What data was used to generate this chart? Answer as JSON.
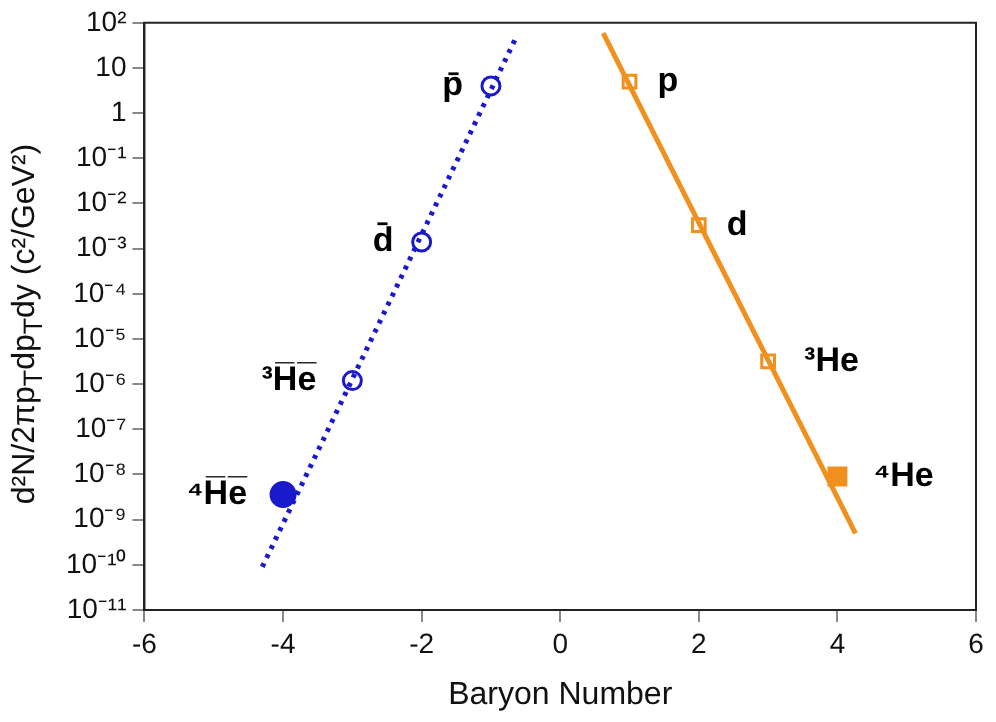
{
  "chart_data": {
    "type": "scatter",
    "xlabel": "Baryon Number",
    "ylabel": "d²N/2πp$_{T}$dp$_{T}$dy (c²/GeV²)",
    "log": "y",
    "grid": false,
    "legend": false,
    "xlim": [
      -6,
      6
    ],
    "xticks": [
      -6,
      -4,
      -2,
      0,
      2,
      4,
      6
    ],
    "ylim": [
      1e-11,
      100
    ],
    "yticks": [
      {
        "value": 1e-11,
        "label": "10⁻¹¹"
      },
      {
        "value": 1e-10,
        "label": "10⁻¹⁰"
      },
      {
        "value": 1e-09,
        "label": "10⁻⁹"
      },
      {
        "value": 1e-08,
        "label": "10⁻⁸"
      },
      {
        "value": 1e-07,
        "label": "10⁻⁷"
      },
      {
        "value": 1e-06,
        "label": "10⁻⁶"
      },
      {
        "value": 1e-05,
        "label": "10⁻⁵"
      },
      {
        "value": 0.0001,
        "label": "10⁻⁴"
      },
      {
        "value": 0.001,
        "label": "10⁻³"
      },
      {
        "value": 0.01,
        "label": "10⁻²"
      },
      {
        "value": 0.1,
        "label": "10⁻¹"
      },
      1,
      10,
      {
        "value": 100,
        "label": "10²"
      }
    ],
    "series": [
      {
        "type": "line",
        "color": "#1a1acc",
        "x": [
          -4.3,
          -0.65
        ],
        "values": [
          9e-11,
          43
        ],
        "marker": "none",
        "line_style": "dotted"
      },
      {
        "type": "line",
        "color": "#f0901e",
        "x": [
          0.62,
          4.26
        ],
        "values": [
          59,
          5e-10
        ],
        "marker": "none",
        "line_style": "solid"
      },
      {
        "type": "scatter",
        "color": "#1a1acc",
        "marker": "circle",
        "x": [
          -3,
          -2,
          -1
        ],
        "values": [
          1.2e-06,
          0.0014,
          4
        ]
      },
      {
        "type": "scatter",
        "color": "#1a1acc",
        "colors": [
          "#1a1acc"
        ],
        "marker": "circle",
        "x": [
          -4
        ],
        "values": [
          3.6e-09
        ]
      },
      {
        "type": "scatter",
        "color": "#f0901e",
        "marker": "square",
        "x": [
          1,
          2,
          3
        ],
        "values": [
          5,
          0.0033,
          3.2e-06
        ]
      },
      {
        "type": "scatter",
        "color": "#f0901e",
        "colors": [
          "#f0901e"
        ],
        "marker": "square",
        "x": [
          4
        ],
        "values": [
          9e-09
        ]
      }
    ],
    "annotations": [
      {
        "text": "p̄",
        "x": -1,
        "y": 4
      },
      {
        "text": "d̄",
        "x": -2,
        "y": 0.0014
      },
      {
        "text": "³H̅e̅",
        "x": -3,
        "y": 1.2e-06
      },
      {
        "text": "⁴H̅e̅",
        "x": -4,
        "y": 3.6e-09
      },
      {
        "text": "p",
        "x": 1,
        "y": 5
      },
      {
        "text": "d",
        "x": 2,
        "y": 0.0033
      },
      {
        "text": "³He",
        "x": 3,
        "y": 3.2e-06
      },
      {
        "text": "⁴He",
        "x": 4,
        "y": 9e-09
      }
    ]
  }
}
